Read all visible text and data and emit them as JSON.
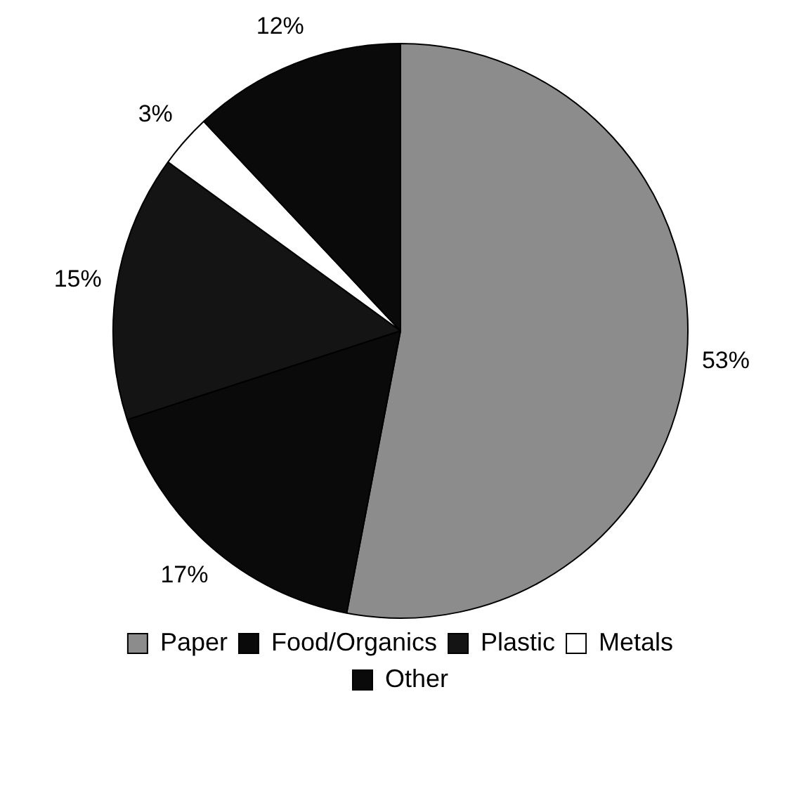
{
  "chart_data": {
    "type": "pie",
    "categories": [
      "Paper",
      "Food/Organics",
      "Plastic",
      "Metals",
      "Other"
    ],
    "values": [
      53,
      17,
      15,
      3,
      12
    ],
    "colors": [
      "#8c8c8c",
      "#0a0a0a",
      "#141414",
      "#ffffff",
      "#0a0a0a"
    ],
    "value_labels": [
      "53%",
      "17%",
      "15%",
      "3%",
      "12%"
    ],
    "legend": "bottom"
  }
}
